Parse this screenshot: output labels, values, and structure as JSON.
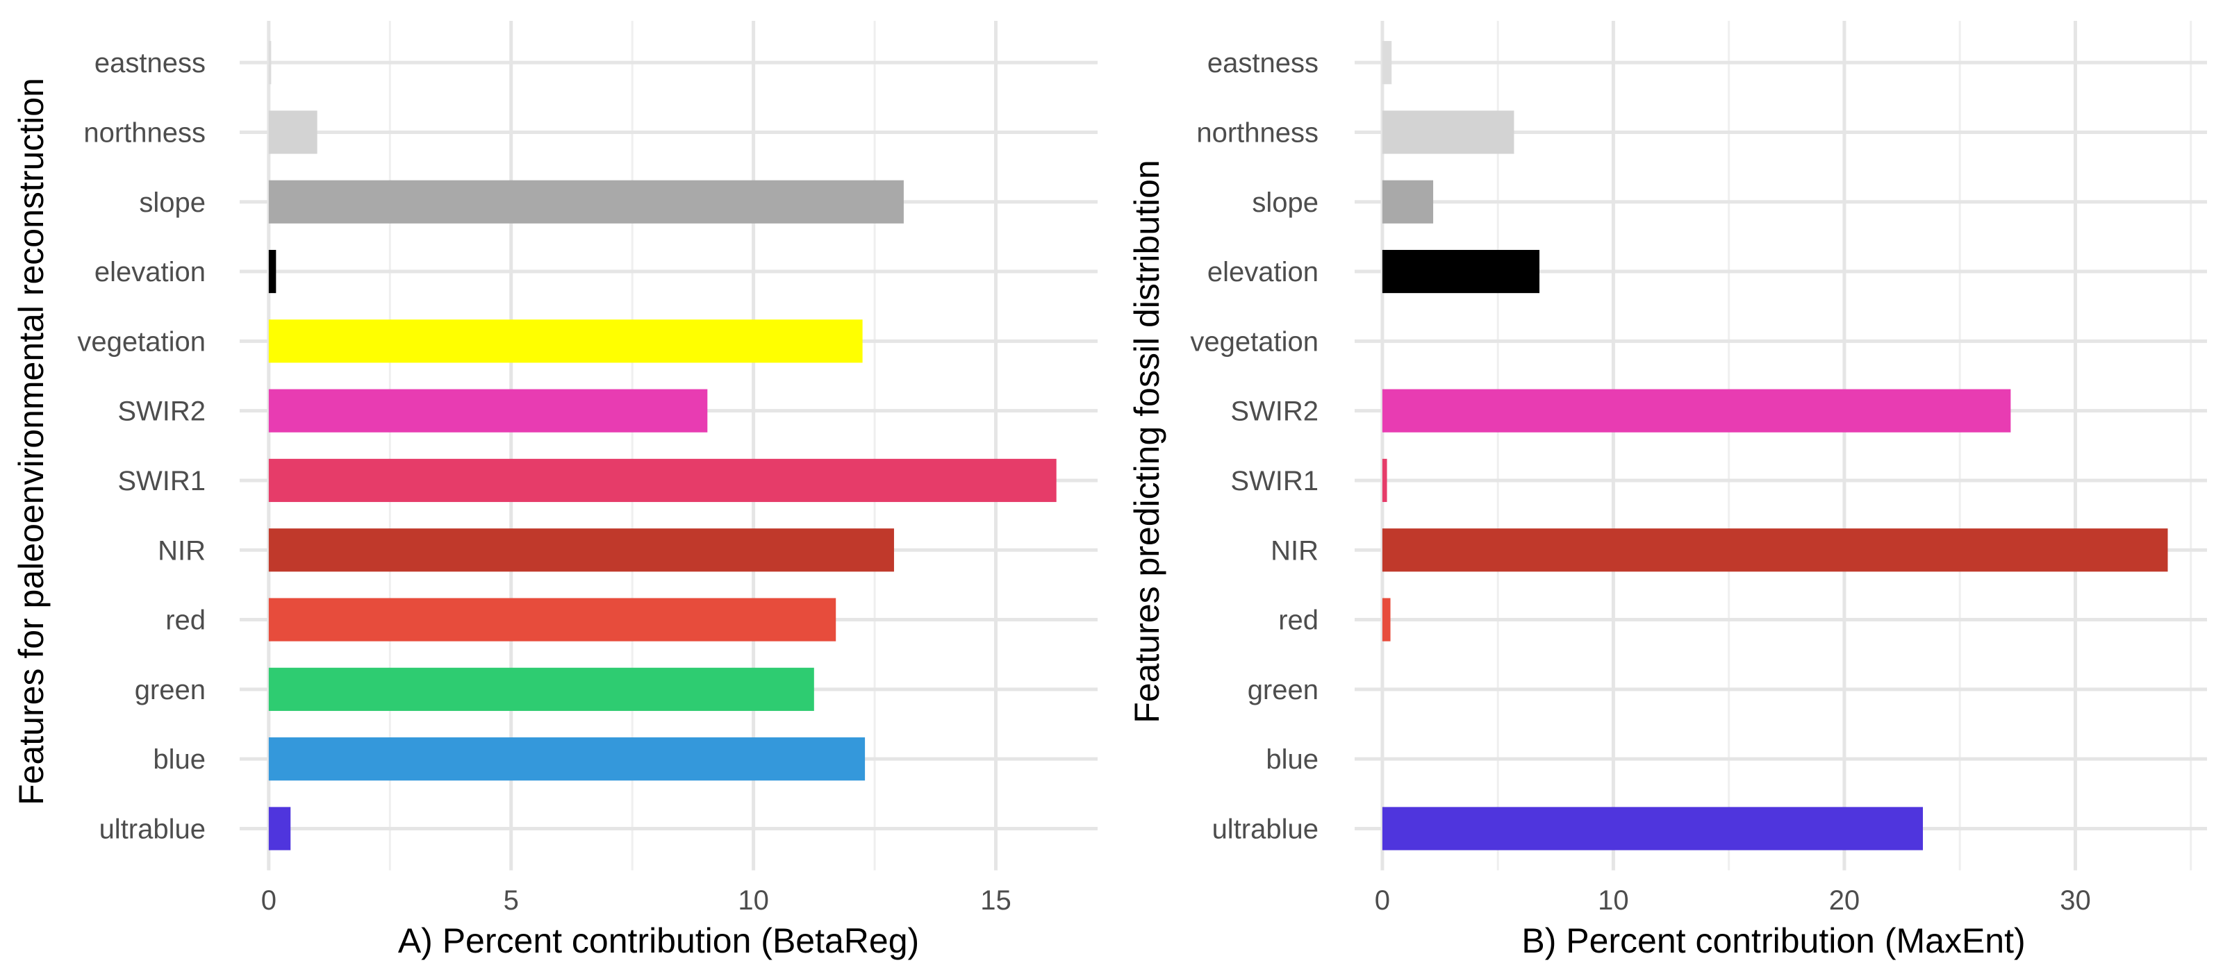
{
  "chart_data": [
    {
      "type": "bar",
      "orientation": "horizontal",
      "categories": [
        "ultrablue",
        "blue",
        "green",
        "red",
        "NIR",
        "SWIR1",
        "SWIR2",
        "vegetation",
        "elevation",
        "slope",
        "northness",
        "eastness"
      ],
      "values": [
        0.45,
        12.3,
        11.25,
        11.7,
        12.9,
        16.25,
        9.05,
        12.25,
        0.15,
        13.1,
        1.0,
        0.05
      ],
      "colors": [
        "#4f35dd",
        "#3498db",
        "#2ecc71",
        "#e74c3c",
        "#c0392b",
        "#e63c69",
        "#e83cb2",
        "#ffff00",
        "#000000",
        "#a9a9a9",
        "#d3d3d3",
        "#dcdcdc"
      ],
      "xlabel": "A) Percent contribution (BetaReg)",
      "ylabel": "Features for paleoenvironmental reconstruction",
      "xlim": [
        -0.6,
        17.1
      ],
      "xticks": [
        0,
        5,
        10,
        15
      ],
      "xtick_labels": [
        "0",
        "5",
        "10",
        "15"
      ],
      "minor_ticks": [
        2.5,
        7.5,
        12.5
      ],
      "grid": true
    },
    {
      "type": "bar",
      "orientation": "horizontal",
      "categories": [
        "ultrablue",
        "blue",
        "green",
        "red",
        "NIR",
        "SWIR1",
        "SWIR2",
        "vegetation",
        "elevation",
        "slope",
        "northness",
        "eastness"
      ],
      "values": [
        23.4,
        0,
        0,
        0.35,
        34.0,
        0.2,
        27.2,
        0,
        6.8,
        2.2,
        5.7,
        0.4
      ],
      "colors": [
        "#4f35dd",
        "#3498db",
        "#2ecc71",
        "#e74c3c",
        "#c0392b",
        "#e63c69",
        "#e83cb2",
        "#ffff00",
        "#000000",
        "#a9a9a9",
        "#d3d3d3",
        "#dcdcdc"
      ],
      "xlabel": "B) Percent contribution (MaxEnt)",
      "ylabel": "Features predicting fossil distribution",
      "xlim": [
        -1.2,
        35.7
      ],
      "xticks": [
        0,
        10,
        20,
        30
      ],
      "xtick_labels": [
        "0",
        "10",
        "20",
        "30"
      ],
      "minor_ticks": [
        5,
        15,
        25,
        35
      ],
      "grid": true
    }
  ]
}
